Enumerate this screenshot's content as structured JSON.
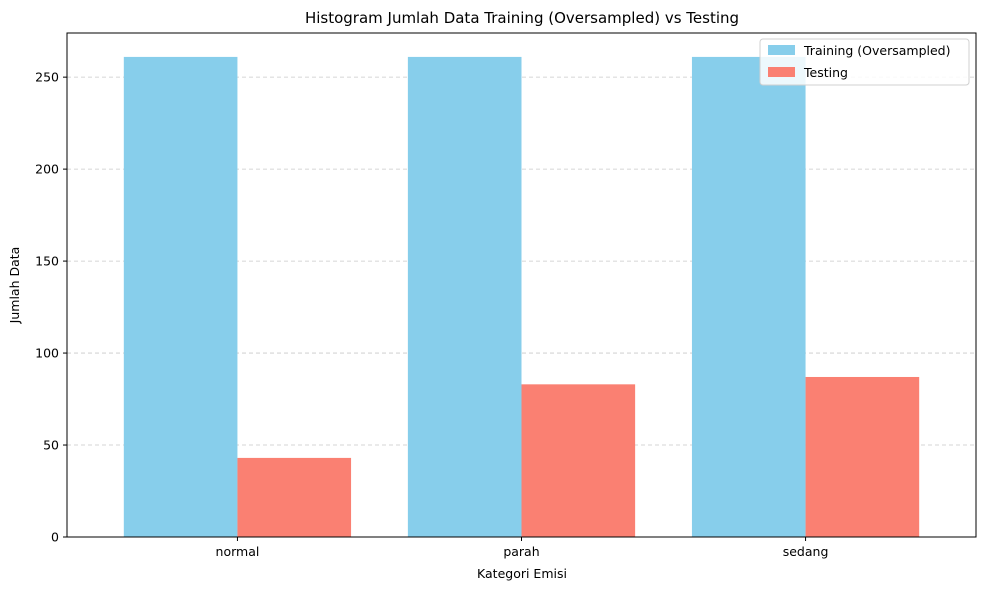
{
  "chart_data": {
    "type": "bar",
    "title": "Histogram Jumlah Data Training (Oversampled) vs Testing",
    "xlabel": "Kategori Emisi",
    "ylabel": "Jumlah Data",
    "categories": [
      "normal",
      "parah",
      "sedang"
    ],
    "series": [
      {
        "name": "Training (Oversampled)",
        "values": [
          261,
          261,
          261
        ],
        "color": "#87ceeb"
      },
      {
        "name": "Testing",
        "values": [
          43,
          83,
          87
        ],
        "color": "#fa8072"
      }
    ],
    "ylim": [
      0,
      274
    ],
    "yticks": [
      0,
      50,
      100,
      150,
      200,
      250
    ],
    "grid": "y-dashed",
    "legend": "top-right"
  }
}
